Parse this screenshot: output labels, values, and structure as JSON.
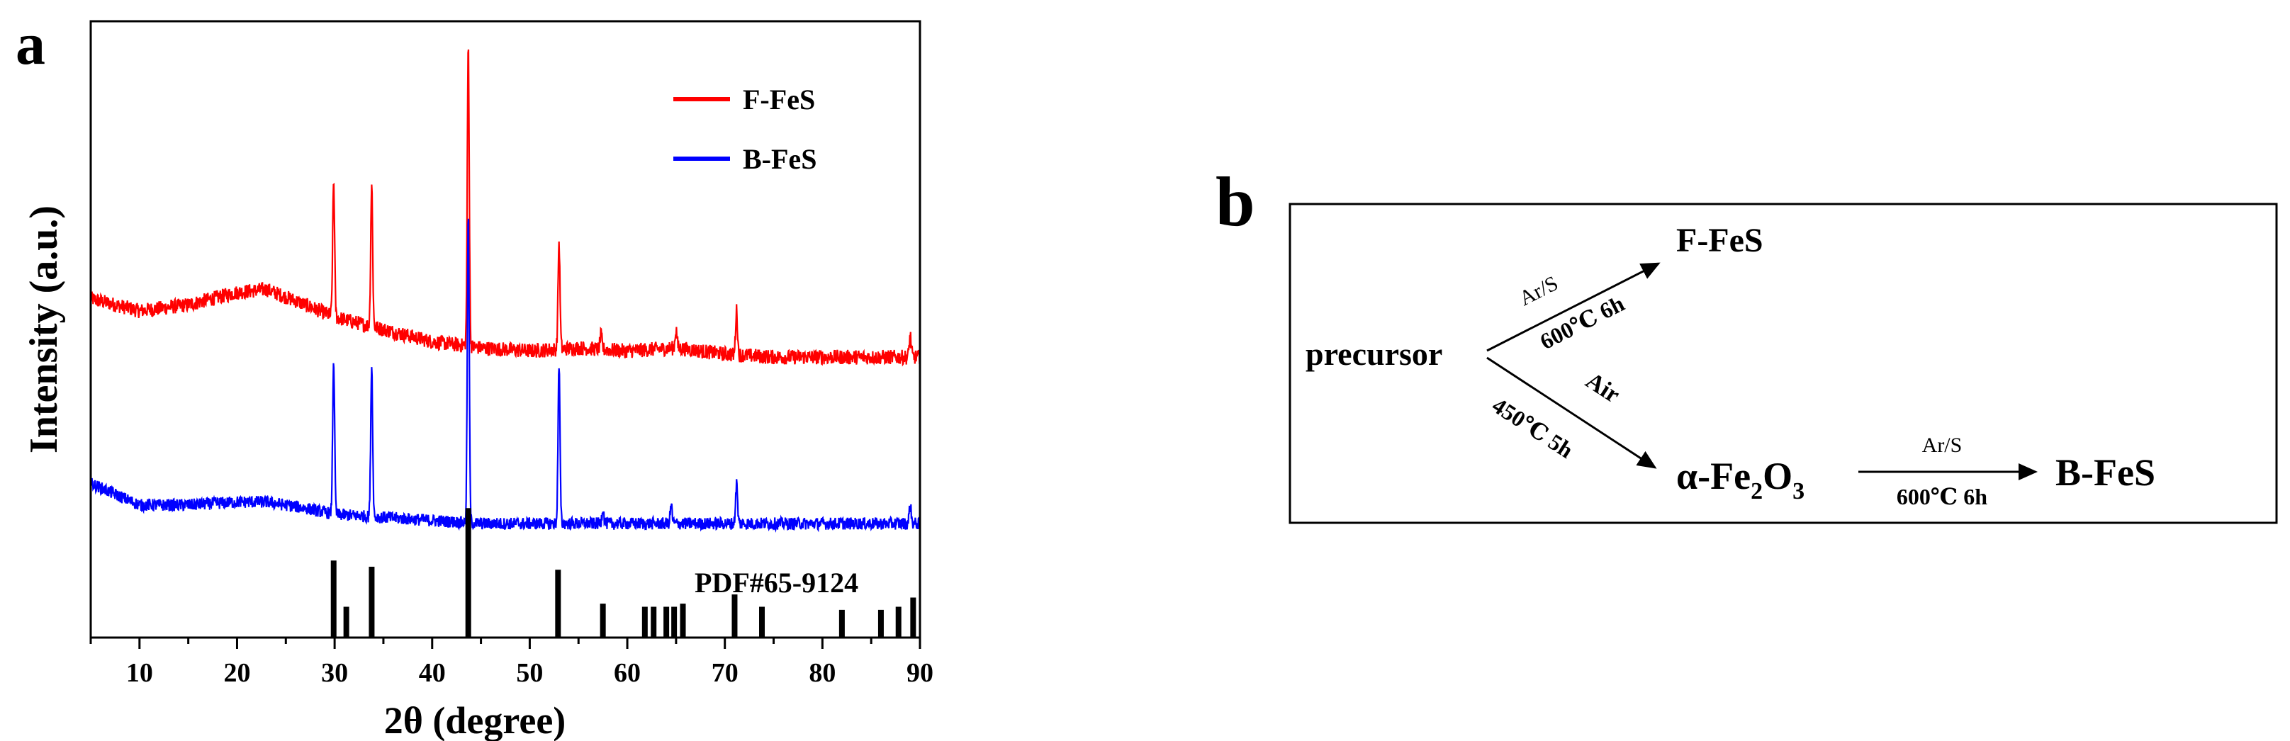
{
  "panel_a": {
    "label": "a",
    "pattern_label": "PDF#65-9124"
  },
  "panel_b": {
    "label": "b",
    "nodes": {
      "precursor": "precursor",
      "f_fes": "F-FeS",
      "fe2o3_prefix": "α-Fe",
      "fe2o3_sub1": "2",
      "fe2o3_mid": "O",
      "fe2o3_sub2": "3",
      "b_fes": "B-FeS"
    },
    "edges": {
      "upper_atmosphere": "Ar/S",
      "upper_condition": "600℃  6h",
      "lower_atmosphere": "Air",
      "lower_condition": "450℃ 5h",
      "right_atmosphere": "Ar/S",
      "right_condition": "600℃  6h"
    }
  },
  "chart_data": {
    "type": "line",
    "title": "",
    "xlabel": "2θ (degree)",
    "ylabel": "Intensity (a.u.)",
    "xlim": [
      5,
      90
    ],
    "ylim": [
      0,
      100
    ],
    "x_ticks": [
      10,
      20,
      30,
      40,
      50,
      60,
      70,
      80,
      90
    ],
    "grid": false,
    "legend": {
      "position": "top-right",
      "entries": [
        "F-FeS",
        "B-FeS"
      ]
    },
    "series": [
      {
        "name": "F-FeS",
        "color": "#ff0000",
        "baseline_points": [
          [
            5,
            55
          ],
          [
            10,
            53
          ],
          [
            15,
            54
          ],
          [
            20,
            56
          ],
          [
            23,
            56.5
          ],
          [
            27,
            54
          ],
          [
            30,
            52
          ],
          [
            35,
            50
          ],
          [
            40,
            48
          ],
          [
            45,
            47
          ],
          [
            50,
            46.5
          ],
          [
            55,
            47
          ],
          [
            60,
            46.5
          ],
          [
            65,
            47
          ],
          [
            70,
            46
          ],
          [
            75,
            45.5
          ],
          [
            80,
            45.5
          ],
          [
            85,
            45.5
          ],
          [
            90,
            45.5
          ]
        ],
        "peaks": [
          [
            29.9,
            74
          ],
          [
            33.8,
            73.5
          ],
          [
            43.7,
            96
          ],
          [
            53.0,
            64
          ],
          [
            57.3,
            49
          ],
          [
            65.0,
            50
          ],
          [
            71.2,
            53
          ],
          [
            89.0,
            49
          ]
        ],
        "noise": 1.2
      },
      {
        "name": "B-FeS",
        "color": "#0000ff",
        "baseline_points": [
          [
            5,
            25
          ],
          [
            10,
            21.5
          ],
          [
            15,
            21.5
          ],
          [
            20,
            22
          ],
          [
            23,
            22
          ],
          [
            27,
            21
          ],
          [
            30,
            20
          ],
          [
            35,
            19.5
          ],
          [
            40,
            19
          ],
          [
            45,
            18.5
          ],
          [
            50,
            18.5
          ],
          [
            55,
            18.5
          ],
          [
            60,
            18.5
          ],
          [
            65,
            18.5
          ],
          [
            70,
            18.5
          ],
          [
            75,
            18.5
          ],
          [
            80,
            18.5
          ],
          [
            85,
            18.5
          ],
          [
            90,
            18.5
          ]
        ],
        "peaks": [
          [
            29.9,
            45
          ],
          [
            33.8,
            44
          ],
          [
            43.7,
            68
          ],
          [
            53.0,
            44
          ],
          [
            57.5,
            21
          ],
          [
            64.5,
            21.5
          ],
          [
            71.2,
            25
          ],
          [
            89.0,
            21.5
          ]
        ],
        "noise": 1.0
      }
    ],
    "reference_pattern": {
      "name": "PDF#65-9124",
      "color": "#000000",
      "lines": [
        [
          29.9,
          12.5
        ],
        [
          31.2,
          5
        ],
        [
          33.8,
          11.5
        ],
        [
          43.7,
          21
        ],
        [
          52.9,
          11
        ],
        [
          57.5,
          5.5
        ],
        [
          61.8,
          5
        ],
        [
          62.7,
          5
        ],
        [
          64.0,
          5
        ],
        [
          64.8,
          5
        ],
        [
          65.7,
          5.5
        ],
        [
          71.0,
          7
        ],
        [
          73.8,
          5
        ],
        [
          82.0,
          4.5
        ],
        [
          86.0,
          4.5
        ],
        [
          87.8,
          5
        ],
        [
          89.3,
          6.5
        ]
      ]
    }
  }
}
